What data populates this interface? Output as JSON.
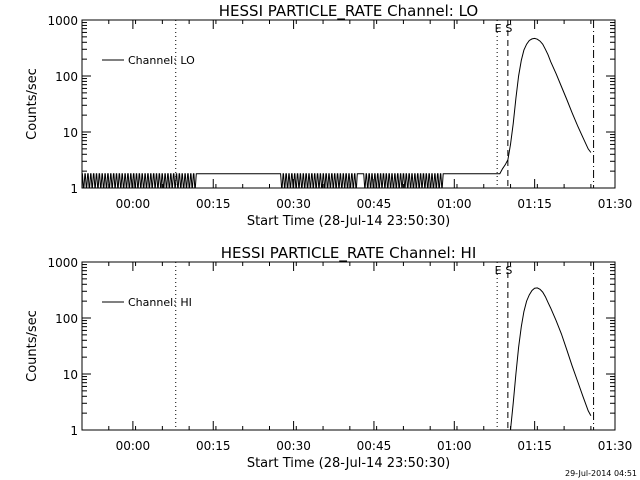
{
  "chart_data": [
    {
      "type": "line",
      "title": "HESSI PARTICLE_RATE Channel: LO",
      "xlabel": "Start Time (28-Jul-14 23:50:30)",
      "ylabel": "Counts/sec",
      "y_scale": "log",
      "ylim": [
        1,
        1000
      ],
      "xlim": [
        "23:50:30",
        "01:30:00"
      ],
      "x_ticks": [
        "00:00",
        "00:15",
        "00:30",
        "00:45",
        "01:00",
        "01:15",
        "01:30"
      ],
      "y_ticks": [
        "1",
        "10",
        "100",
        "1000"
      ],
      "legend": {
        "position": "top-left",
        "entries": [
          "Channel: LO"
        ]
      },
      "markers": [
        {
          "time": "00:08:00",
          "style": "dotted",
          "label": ""
        },
        {
          "time": "01:08:00",
          "style": "dotted",
          "label": "E"
        },
        {
          "time": "01:10:00",
          "style": "dashed",
          "label": "S"
        },
        {
          "time": "01:26:00",
          "style": "dash-dot",
          "label": ""
        }
      ],
      "series": [
        {
          "name": "Channel: LO",
          "background": {
            "low": 1,
            "high": 1.8,
            "toggles_in": [
              [
                "23:50:30",
                "00:12:00"
              ],
              [
                "00:27:30",
                "00:42:00"
              ],
              [
                "00:43:00",
                "00:58:00"
              ]
            ],
            "flat_high": [
              [
                "00:12:00",
                "00:27:30"
              ],
              [
                "00:58:00",
                "01:08:00"
              ]
            ]
          },
          "points": [
            [
              "01:08:30",
              1.8
            ],
            [
              "01:09:00",
              2.2
            ],
            [
              "01:09:30",
              2.6
            ],
            [
              "01:10:00",
              3.2
            ],
            [
              "01:10:30",
              6
            ],
            [
              "01:11:00",
              14
            ],
            [
              "01:11:30",
              40
            ],
            [
              "01:12:00",
              100
            ],
            [
              "01:12:30",
              190
            ],
            [
              "01:13:00",
              290
            ],
            [
              "01:13:30",
              370
            ],
            [
              "01:14:00",
              430
            ],
            [
              "01:14:30",
              460
            ],
            [
              "01:15:00",
              470
            ],
            [
              "01:15:30",
              455
            ],
            [
              "01:16:00",
              420
            ],
            [
              "01:16:30",
              370
            ],
            [
              "01:17:00",
              300
            ],
            [
              "01:17:30",
              240
            ],
            [
              "01:18:00",
              180
            ],
            [
              "01:19:00",
              110
            ],
            [
              "01:20:00",
              65
            ],
            [
              "01:21:00",
              38
            ],
            [
              "01:22:00",
              22
            ],
            [
              "01:23:00",
              13
            ],
            [
              "01:24:00",
              8
            ],
            [
              "01:25:00",
              5
            ],
            [
              "01:25:30",
              4.3
            ]
          ]
        }
      ]
    },
    {
      "type": "line",
      "title": "HESSI PARTICLE_RATE Channel: HI",
      "xlabel": "Start Time (28-Jul-14 23:50:30)",
      "ylabel": "Counts/sec",
      "y_scale": "log",
      "ylim": [
        1,
        1000
      ],
      "xlim": [
        "23:50:30",
        "01:30:00"
      ],
      "x_ticks": [
        "00:00",
        "00:15",
        "00:30",
        "00:45",
        "01:00",
        "01:15",
        "01:30"
      ],
      "y_ticks": [
        "1",
        "10",
        "100",
        "1000"
      ],
      "legend": {
        "position": "top-left",
        "entries": [
          "Channel: HI"
        ]
      },
      "markers": [
        {
          "time": "00:08:00",
          "style": "dotted",
          "label": ""
        },
        {
          "time": "01:08:00",
          "style": "dotted",
          "label": "E"
        },
        {
          "time": "01:10:00",
          "style": "dashed",
          "label": "S"
        },
        {
          "time": "01:26:00",
          "style": "dash-dot",
          "label": ""
        }
      ],
      "series": [
        {
          "name": "Channel: HI",
          "points": [
            [
              "01:10:30",
              1
            ],
            [
              "01:11:00",
              3
            ],
            [
              "01:11:30",
              10
            ],
            [
              "01:12:00",
              30
            ],
            [
              "01:12:30",
              70
            ],
            [
              "01:13:00",
              130
            ],
            [
              "01:13:30",
              200
            ],
            [
              "01:14:00",
              260
            ],
            [
              "01:14:30",
              310
            ],
            [
              "01:15:00",
              340
            ],
            [
              "01:15:30",
              345
            ],
            [
              "01:16:00",
              325
            ],
            [
              "01:16:30",
              290
            ],
            [
              "01:17:00",
              240
            ],
            [
              "01:17:30",
              190
            ],
            [
              "01:18:00",
              150
            ],
            [
              "01:19:00",
              90
            ],
            [
              "01:20:00",
              52
            ],
            [
              "01:21:00",
              27
            ],
            [
              "01:22:00",
              14
            ],
            [
              "01:23:00",
              7.5
            ],
            [
              "01:24:00",
              4
            ],
            [
              "01:25:00",
              2.2
            ],
            [
              "01:25:30",
              1.8
            ]
          ]
        }
      ]
    }
  ],
  "footer": {
    "timestamp": "29-Jul-2014 04:51"
  }
}
